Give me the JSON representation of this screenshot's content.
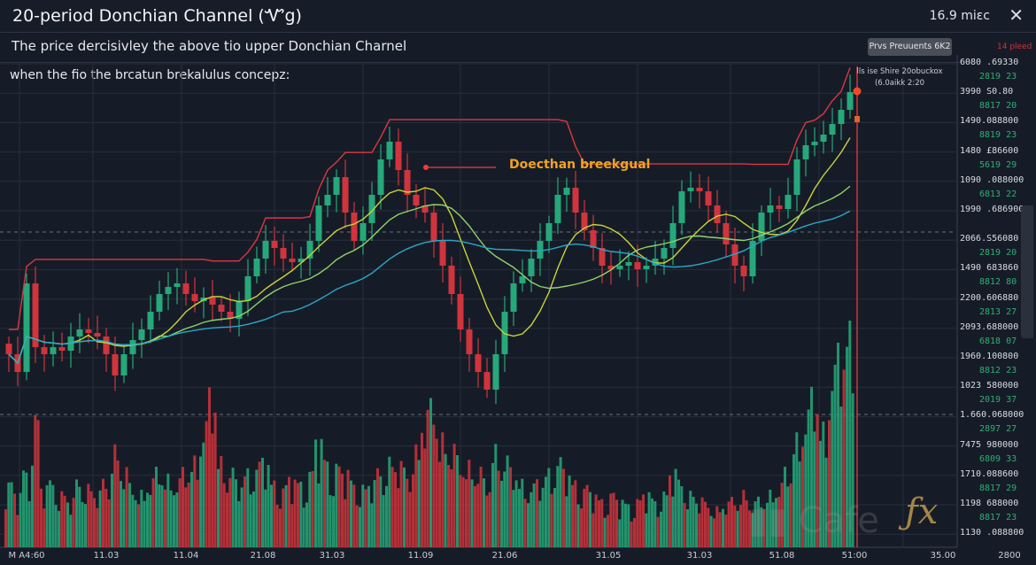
{
  "header": {
    "title": "20-period Donchian Channel (Ꮙg)",
    "timeframe": "16.9 miɛc",
    "close_icon": "close-icon"
  },
  "subtitle": {
    "line1": "The price dercisivley the above tio upper Donchian Charnel",
    "line2": "when the fio the brcatun brekalulus concepz:"
  },
  "toolbar": {
    "button_label": "Prvs Preuuents 6K2",
    "red_label": "14 pleed"
  },
  "note": {
    "line1": "lls ise Shire 20obuckox",
    "line2": "(6.0aikk 2:20"
  },
  "annotation": "Doecthan breekgual",
  "watermark": {
    "text": "Cafe",
    "fx": "fx"
  },
  "colors": {
    "up": "#26a87a",
    "down": "#d1343c",
    "upper_channel": "#d9393f",
    "ma_yellow": "#c9d43a",
    "ma_green": "#8fd46a",
    "ma_blue": "#2aa7c9",
    "background": "#161c27"
  },
  "chart_data": {
    "type": "candlestick",
    "title": "20-period Donchian Channel (Ꮙg)",
    "x_tick_labels": [
      "M A4:60",
      "11.03",
      "11.04",
      "21.08",
      "31.03",
      "11.09",
      "21.06",
      "31.05",
      "31.03",
      "51.08",
      "51:00",
      "35.00",
      "2800"
    ],
    "y_tick_labels": [
      {
        "price": "6080 .69330",
        "sub": "2819 23"
      },
      {
        "price": "3990 S0.80",
        "sub": "8817 20"
      },
      {
        "price": "1490.088800",
        "sub": "8819 23"
      },
      {
        "price": "1480 £86600",
        "sub": "5619 29"
      },
      {
        "price": "1090 .088000",
        "sub": "6813 22"
      },
      {
        "price": "1990 .686900",
        "sub": ""
      },
      {
        "price": "2066.S56080",
        "sub": "2819 20"
      },
      {
        "price": "1490 683860",
        "sub": "8812 80"
      },
      {
        "price": "2200.606880",
        "sub": "2813 27"
      },
      {
        "price": "2093.688000",
        "sub": "6818 07"
      },
      {
        "price": "1960.100800",
        "sub": "8812 23"
      },
      {
        "price": "1023 580000",
        "sub": "2019 37"
      },
      {
        "price": "1.660.068000",
        "sub": "2897 27"
      },
      {
        "price": "7475 980000",
        "sub": "6809 33"
      },
      {
        "price": "1710.088600",
        "sub": "8817 29"
      },
      {
        "price": "1198 688000",
        "sub": "8817 23"
      },
      {
        "price": "1130 .088800",
        "sub": ""
      }
    ],
    "closes": [
      20,
      15,
      40,
      22,
      20,
      22,
      21,
      25,
      27,
      26,
      25,
      20,
      14,
      20,
      24,
      27,
      32,
      37,
      39,
      40,
      37,
      35,
      36,
      34,
      32,
      30,
      35,
      42,
      47,
      52,
      50,
      47,
      46,
      47,
      52,
      62,
      65,
      70,
      60,
      52,
      57,
      65,
      75,
      80,
      72,
      65,
      62,
      60,
      52,
      45,
      37,
      27,
      20,
      15,
      10,
      20,
      32,
      40,
      42,
      47,
      52,
      57,
      65,
      67,
      60,
      55,
      50,
      45,
      44,
      45,
      46,
      44,
      45,
      47,
      50,
      57,
      66,
      67,
      66,
      62,
      57,
      51,
      45,
      42,
      52,
      60,
      62,
      61,
      65,
      75,
      79,
      80,
      82,
      85,
      89,
      94
    ],
    "volumes": [
      30,
      25,
      35,
      60,
      28,
      30,
      25,
      22,
      30,
      28,
      25,
      30,
      45,
      35,
      28,
      25,
      30,
      35,
      32,
      30,
      35,
      40,
      55,
      70,
      40,
      35,
      30,
      35,
      38,
      40,
      30,
      28,
      32,
      30,
      35,
      50,
      40,
      38,
      35,
      30,
      28,
      30,
      35,
      40,
      38,
      35,
      45,
      60,
      65,
      50,
      45,
      40,
      38,
      35,
      30,
      45,
      40,
      35,
      30,
      28,
      30,
      35,
      40,
      35,
      30,
      28,
      25,
      22,
      25,
      22,
      20,
      22,
      25,
      22,
      25,
      35,
      30,
      25,
      22,
      20,
      18,
      20,
      22,
      25,
      20,
      22,
      25,
      28,
      35,
      50,
      60,
      70,
      55,
      80,
      90,
      100
    ],
    "overlays": [
      "Donchian upper (20)",
      "moving averages"
    ],
    "grid": true
  }
}
